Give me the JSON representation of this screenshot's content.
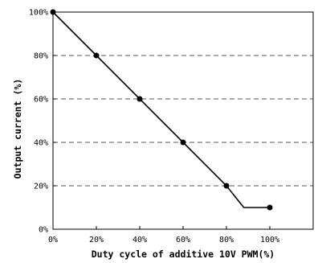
{
  "chart_data": {
    "type": "line",
    "title": "",
    "xlabel": "Duty cycle of additive 10V PWM(%)",
    "ylabel": "Output current (%)",
    "x_ticks": [
      "0%",
      "20%",
      "40%",
      "60%",
      "80%",
      "100%"
    ],
    "y_ticks": [
      "0%",
      "20%",
      "40%",
      "60%",
      "80%",
      "100%"
    ],
    "xlim": [
      0,
      120
    ],
    "ylim": [
      0,
      100
    ],
    "grid": "horizontal dashed",
    "line": {
      "x": [
        0,
        20,
        40,
        60,
        80,
        88,
        100
      ],
      "y": [
        100,
        80,
        60,
        40,
        20,
        10,
        10
      ]
    },
    "markers": {
      "x": [
        0,
        20,
        40,
        60,
        80,
        100
      ],
      "y": [
        100,
        80,
        60,
        40,
        20,
        10
      ]
    },
    "colors": {
      "line": "#000000",
      "grid": "#555555",
      "axis": "#000000"
    }
  }
}
